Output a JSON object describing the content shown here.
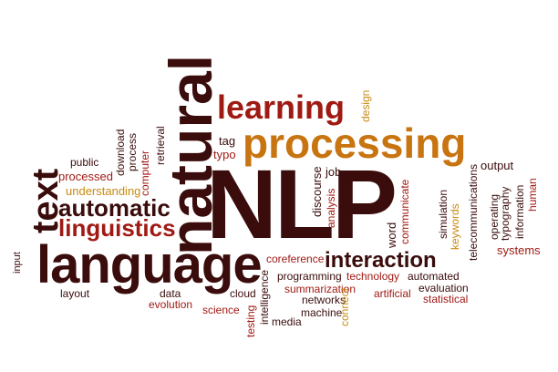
{
  "colors": {
    "dark": "#3b0c0c",
    "red": "#a01a14",
    "orange": "#c87410",
    "gold": "#c88a12",
    "brown": "#6e1410"
  },
  "words": {
    "nlp": "NLP",
    "natural": "natural",
    "language": "language",
    "processing": "processing",
    "learning": "learning",
    "text": "text",
    "automatic": "automatic",
    "linguistics": "linguistics",
    "interaction": "interaction",
    "understanding": "understanding",
    "processed": "processed",
    "public": "public",
    "computer": "computer",
    "download": "download",
    "process": "process",
    "retrieval": "retrieval",
    "tag": "tag",
    "typo": "typo",
    "design": "design",
    "job": "job",
    "discourse": "discourse",
    "analysis": "analysis",
    "word": "word",
    "communicate": "communicate",
    "simulation": "simulation",
    "keywords": "keywords",
    "telecommunications": "telecommunications",
    "output": "output",
    "operating": "operating",
    "typography": "typography",
    "information": "information",
    "human": "human",
    "systems": "systems",
    "input": "input",
    "layout": "layout",
    "data": "data",
    "evolution": "evolution",
    "cloud": "cloud",
    "science": "science",
    "testing": "testing",
    "intelligence": "intelligence",
    "media": "media",
    "coreference": "coreference",
    "programming": "programming",
    "technology": "technology",
    "automated": "automated",
    "summarization": "summarization",
    "networks": "networks",
    "machine": "machine",
    "connect": "connect",
    "artificial": "artificial",
    "evaluation": "evaluation",
    "statistical": "statistical"
  }
}
